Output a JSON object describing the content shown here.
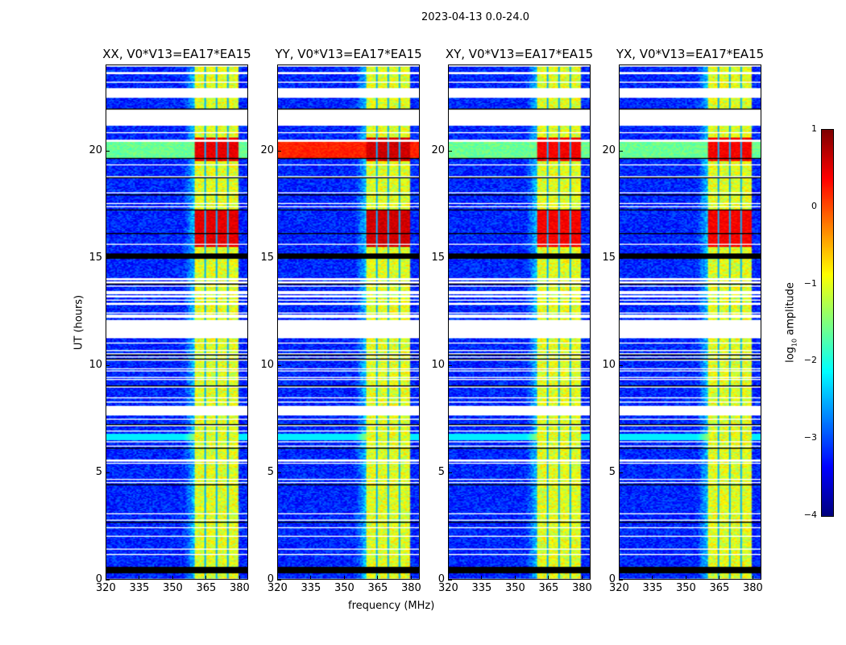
{
  "chart_data": {
    "type": "heatmap",
    "title": "2023-04-13 0.0-24.0",
    "xlabel": "frequency (MHz)",
    "ylabel": "UT (hours)",
    "xlim": [
      320,
      384
    ],
    "ylim": [
      0,
      24
    ],
    "xticks": [
      "320",
      "335",
      "350",
      "365",
      "380"
    ],
    "yticks": [
      "0",
      "5",
      "10",
      "15",
      "20"
    ],
    "panels": [
      {
        "title": "XX, V0*V13=EA17*EA15",
        "strong_rfi_level": 0.5,
        "wideband_20h": false
      },
      {
        "title": "YY, V0*V13=EA17*EA15",
        "strong_rfi_level": 0.6,
        "wideband_20h": true
      },
      {
        "title": "XY, V0*V13=EA17*EA15",
        "strong_rfi_level": 0.4,
        "wideband_20h": false
      },
      {
        "title": "YX, V0*V13=EA17*EA15",
        "strong_rfi_level": 0.4,
        "wideband_20h": false
      }
    ],
    "rfi_band_mhz": [
      360,
      380
    ],
    "rfi_subband_edges_mhz": [
      365,
      370,
      375
    ],
    "strong_rfi_hours": [
      [
        15.5,
        17.2
      ],
      [
        19.5,
        20.6
      ]
    ],
    "black_hours": [
      [
        0.3,
        0.6
      ]
    ],
    "colorbar": {
      "label": "log10 amplitude",
      "label_main": "log",
      "label_sub": "10",
      "label_rest": " amplitude",
      "range": [
        -4,
        1
      ],
      "ticks": [
        "1",
        "0",
        "−1",
        "−2",
        "−3",
        "−4"
      ],
      "cmap": "jet"
    }
  }
}
